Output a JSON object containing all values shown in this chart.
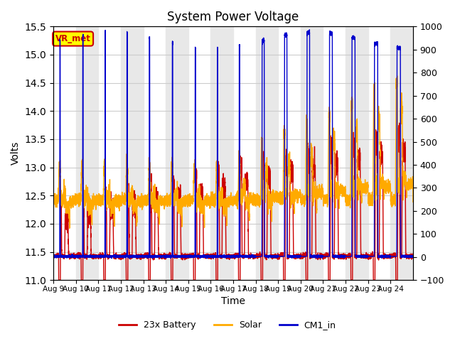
{
  "title": "System Power Voltage",
  "xlabel": "Time",
  "ylabel_left": "Volts",
  "ylabel_right": "",
  "ylim_left": [
    11.0,
    15.5
  ],
  "ylim_right": [
    -100,
    1000
  ],
  "yticks_left": [
    11.0,
    11.5,
    12.0,
    12.5,
    13.0,
    13.5,
    14.0,
    14.5,
    15.0,
    15.5
  ],
  "yticks_right": [
    -100,
    0,
    100,
    200,
    300,
    400,
    500,
    600,
    700,
    800,
    900,
    1000
  ],
  "xtick_labels": [
    "Aug 9",
    "Aug 10",
    "Aug 11",
    "Aug 12",
    "Aug 13",
    "Aug 14",
    "Aug 15",
    "Aug 16",
    "Aug 17",
    "Aug 18",
    "Aug 19",
    "Aug 20",
    "Aug 21",
    "Aug 22",
    "Aug 23",
    "Aug 24"
  ],
  "color_battery": "#cc0000",
  "color_solar": "#ffaa00",
  "color_cm1": "#0000cc",
  "annotation_text": "VR_met",
  "annotation_color_bg": "#ffff00",
  "annotation_color_text": "#cc0000",
  "legend_labels": [
    "23x Battery",
    "Solar",
    "CM1_in"
  ],
  "grid_color": "#cccccc",
  "band_color": "#e8e8e8",
  "n_days": 16,
  "line_width": 1.0
}
